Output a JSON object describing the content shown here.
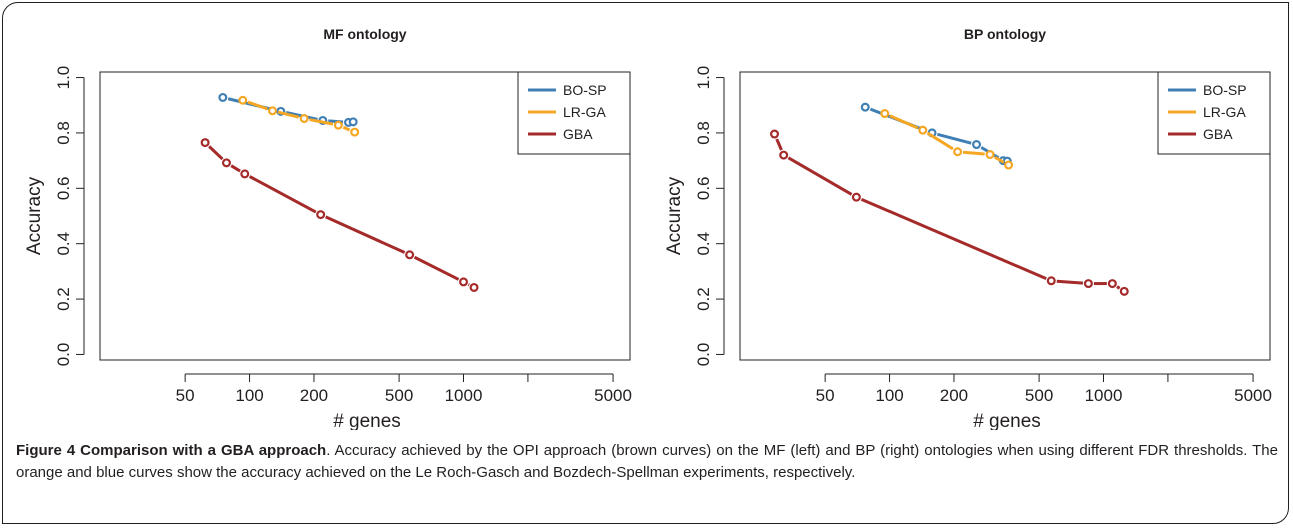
{
  "caption": {
    "label": "Figure 4 Comparison with a GBA approach",
    "text": ". Accuracy achieved by the OPI approach (brown curves) on the MF (left) and BP (right) ontologies when using different FDR thresholds. The orange and blue curves show the accuracy achieved on the Le Roch-Gasch and Bozdech-Spellman experiments, respectively."
  },
  "colors": {
    "BO-SP": "#3f7fb4",
    "LR-GA": "#f5a623",
    "GBA": "#a52a2a"
  },
  "chart_data": [
    {
      "type": "line",
      "title": "MF ontology",
      "xlabel": "# genes",
      "ylabel": "Accuracy",
      "xscale": "log",
      "xlim": [
        20,
        6000
      ],
      "ylim": [
        -0.02,
        1.02
      ],
      "xticks": [
        50,
        100,
        200,
        500,
        1000,
        2000,
        5000
      ],
      "xticklabels": [
        "50",
        "100",
        "200",
        "500",
        "1000",
        "",
        "5000"
      ],
      "yticks": [
        0.0,
        0.2,
        0.4,
        0.6,
        0.8,
        1.0
      ],
      "yticklabels": [
        "0.0",
        "0.2",
        "0.4",
        "0.6",
        "0.8",
        "1.0"
      ],
      "legend": "top-right",
      "grid": false,
      "series": [
        {
          "name": "BO-SP",
          "x": [
            75,
            140,
            220,
            290,
            305
          ],
          "y": [
            0.928,
            0.878,
            0.845,
            0.838,
            0.84
          ]
        },
        {
          "name": "LR-GA",
          "x": [
            93,
            128,
            180,
            260,
            310
          ],
          "y": [
            0.918,
            0.88,
            0.852,
            0.828,
            0.803
          ]
        },
        {
          "name": "GBA",
          "x": [
            62,
            78,
            95,
            215,
            560,
            1000,
            1120
          ],
          "y": [
            0.765,
            0.692,
            0.652,
            0.505,
            0.36,
            0.262,
            0.242
          ]
        }
      ]
    },
    {
      "type": "line",
      "title": "BP ontology",
      "xlabel": "# genes",
      "ylabel": "Accuracy",
      "xscale": "log",
      "xlim": [
        20,
        6000
      ],
      "ylim": [
        -0.02,
        1.02
      ],
      "xticks": [
        50,
        100,
        200,
        500,
        1000,
        2000,
        5000
      ],
      "xticklabels": [
        "50",
        "100",
        "200",
        "500",
        "1000",
        "",
        "5000"
      ],
      "yticks": [
        0.0,
        0.2,
        0.4,
        0.6,
        0.8,
        1.0
      ],
      "yticklabels": [
        "0.0",
        "0.2",
        "0.4",
        "0.6",
        "0.8",
        "1.0"
      ],
      "legend": "top-right",
      "grid": false,
      "series": [
        {
          "name": "BO-SP",
          "x": [
            77,
            158,
            255,
            340,
            355
          ],
          "y": [
            0.893,
            0.8,
            0.758,
            0.7,
            0.698
          ]
        },
        {
          "name": "LR-GA",
          "x": [
            95,
            143,
            208,
            295,
            360
          ],
          "y": [
            0.87,
            0.81,
            0.732,
            0.722,
            0.684
          ]
        },
        {
          "name": "GBA",
          "x": [
            29,
            32,
            70,
            570,
            850,
            1100,
            1250
          ],
          "y": [
            0.796,
            0.72,
            0.568,
            0.266,
            0.256,
            0.256,
            0.228
          ]
        }
      ]
    }
  ]
}
